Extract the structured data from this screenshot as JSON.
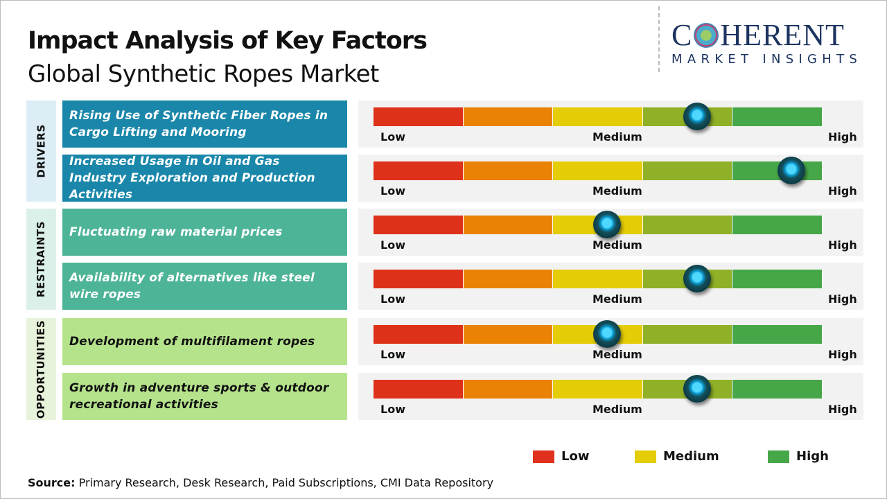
{
  "header": {
    "title": "Impact Analysis of Key Factors",
    "subtitle": "Global Synthetic Ropes Market"
  },
  "logo": {
    "line1": "COHERENT",
    "line2": "MARKET INSIGHTS"
  },
  "scale_labels": {
    "low": "Low",
    "medium": "Medium",
    "high": "High"
  },
  "scale_colors": [
    "#de3119",
    "#ea8205",
    "#e4cc07",
    "#8fb027",
    "#46a748"
  ],
  "categories": [
    {
      "label": "DRIVERS",
      "bg": "#dcedf6",
      "box": "#1a87aa",
      "text": "#ffffff"
    },
    {
      "label": "RESTRAINTS",
      "bg": "#dcf0ea",
      "box": "#4db497",
      "text": "#ffffff"
    },
    {
      "label": "OPPORTUNITIES",
      "bg": "#e7f3da",
      "box": "#b5e38c",
      "text": "#111111"
    }
  ],
  "factors": [
    {
      "category": 0,
      "text": "Rising Use of Synthetic Fiber Ropes in Cargo Lifting and Mooring",
      "impact": 0.72
    },
    {
      "category": 0,
      "text": "Increased Usage in Oil and Gas Industry Exploration and Production Activities",
      "impact": 0.93
    },
    {
      "category": 1,
      "text": "Fluctuating raw material prices",
      "impact": 0.52
    },
    {
      "category": 1,
      "text": "Availability of alternatives like steel wire ropes",
      "impact": 0.72
    },
    {
      "category": 2,
      "text": "Development of multifilament ropes",
      "impact": 0.52
    },
    {
      "category": 2,
      "text": "Growth in adventure sports & outdoor recreational activities",
      "impact": 0.72
    }
  ],
  "legend": [
    {
      "label": "Low",
      "color": "#e0301e"
    },
    {
      "label": "Medium",
      "color": "#e4cc07"
    },
    {
      "label": "High",
      "color": "#46a748"
    }
  ],
  "source": {
    "label": "Source:",
    "text": " Primary Research, Desk Research, Paid Subscriptions, CMI Data Repository"
  }
}
